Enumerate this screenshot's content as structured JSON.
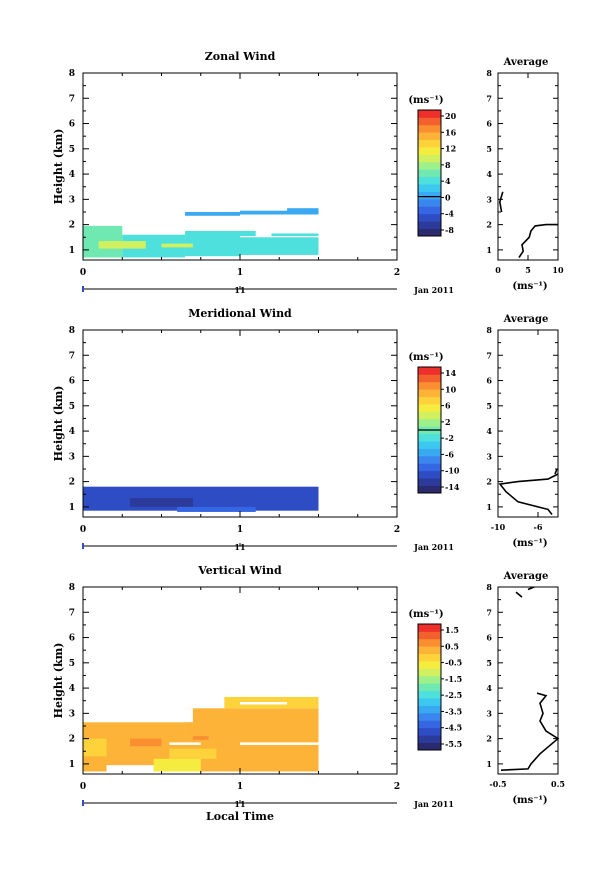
{
  "common": {
    "ylabel": "Height (km)",
    "xlabel": "Local Time",
    "xticks": [
      "0",
      "1",
      "2"
    ],
    "date_tick": "11",
    "date_label": "Jan 2011",
    "units_label": "(ms⁻¹)",
    "avg_title": "Average",
    "yticks": [
      "1",
      "2",
      "3",
      "4",
      "5",
      "6",
      "7",
      "8"
    ]
  },
  "palette": [
    "#2b2a6e",
    "#2c3a9a",
    "#2e4cc4",
    "#3567e4",
    "#3b86ee",
    "#39a9f1",
    "#3cc8ef",
    "#4ee0dc",
    "#6fe8b2",
    "#9ef08a",
    "#d0f060",
    "#f4ec3f",
    "#fdd23b",
    "#fcb337",
    "#fa8f32",
    "#f2602e",
    "#ee2f2b"
  ],
  "chart_data": [
    {
      "type": "heatmap",
      "title": "Zonal Wind",
      "xlim": [
        0,
        2
      ],
      "ylim": [
        0.6,
        8.0
      ],
      "colorbar": {
        "labels": [
          "20",
          "16",
          "12",
          "8",
          "4",
          "0",
          "-4",
          "-8"
        ],
        "range": [
          -10,
          22
        ],
        "zero_line": 0
      },
      "regions": [
        {
          "x0": 0.0,
          "x1": 0.25,
          "y0": 0.7,
          "y1": 1.95,
          "v": 6
        },
        {
          "x0": 0.25,
          "x1": 0.65,
          "y0": 0.7,
          "y1": 1.6,
          "v": 5
        },
        {
          "x0": 0.65,
          "x1": 1.0,
          "y0": 0.75,
          "y1": 1.55,
          "v": 4
        },
        {
          "x0": 1.0,
          "x1": 1.5,
          "y0": 0.8,
          "y1": 1.5,
          "v": 5
        },
        {
          "x0": 0.1,
          "x1": 0.4,
          "y0": 1.05,
          "y1": 1.35,
          "v": 9
        },
        {
          "x0": 0.5,
          "x1": 0.7,
          "y0": 1.1,
          "y1": 1.25,
          "v": 10
        },
        {
          "x0": 0.65,
          "x1": 1.1,
          "y0": 1.55,
          "y1": 1.75,
          "v": 5
        },
        {
          "x0": 1.2,
          "x1": 1.5,
          "y0": 1.55,
          "y1": 1.65,
          "v": 5
        },
        {
          "x0": 0.65,
          "x1": 1.0,
          "y0": 2.35,
          "y1": 2.5,
          "v": 0
        },
        {
          "x0": 1.0,
          "x1": 1.5,
          "y0": 2.4,
          "y1": 2.55,
          "v": 1
        },
        {
          "x0": 1.3,
          "x1": 1.5,
          "y0": 2.5,
          "y1": 2.65,
          "v": 0
        }
      ],
      "average": {
        "xlim": [
          0,
          10
        ],
        "xticks": [
          "0",
          "5",
          "10"
        ],
        "profile": [
          [
            3.5,
            0.7
          ],
          [
            4.2,
            0.95
          ],
          [
            4.0,
            1.2
          ],
          [
            5.2,
            1.5
          ],
          [
            5.5,
            1.75
          ],
          [
            6.2,
            1.95
          ],
          [
            8.0,
            2.0
          ],
          [
            10,
            2.0
          ]
        ],
        "profile2": [
          [
            0.6,
            2.5
          ],
          [
            0.3,
            2.9
          ],
          [
            0.8,
            3.3
          ]
        ]
      }
    },
    {
      "type": "heatmap",
      "title": "Meridional Wind",
      "xlim": [
        0,
        2
      ],
      "ylim": [
        0.6,
        8.0
      ],
      "colorbar": {
        "labels": [
          "14",
          "10",
          "6",
          "2",
          "-2",
          "-6",
          "-10",
          "-14"
        ],
        "range": [
          -16,
          16
        ],
        "zero_line": 0
      },
      "regions": [
        {
          "x0": 0.0,
          "x1": 1.5,
          "y0": 0.85,
          "y1": 1.8,
          "v": -12
        },
        {
          "x0": 0.3,
          "x1": 0.7,
          "y0": 1.0,
          "y1": 1.35,
          "v": -14
        },
        {
          "x0": 0.9,
          "x1": 1.5,
          "y0": 1.1,
          "y1": 1.45,
          "v": -11
        },
        {
          "x0": 0.6,
          "x1": 1.1,
          "y0": 0.8,
          "y1": 1.0,
          "v": -9
        }
      ],
      "average": {
        "xlim": [
          -10,
          -4
        ],
        "xticks": [
          "-10",
          "-6"
        ],
        "profile": [
          [
            -4.6,
            0.7
          ],
          [
            -5.0,
            0.9
          ],
          [
            -8.0,
            1.2
          ],
          [
            -9.2,
            1.6
          ],
          [
            -9.8,
            1.9
          ],
          [
            -8.0,
            2.0
          ],
          [
            -5.0,
            2.1
          ],
          [
            -4.0,
            2.3
          ]
        ],
        "profile2": [
          [
            -4.3,
            2.3
          ],
          [
            -4.1,
            2.5
          ]
        ]
      }
    },
    {
      "type": "heatmap",
      "title": "Vertical Wind",
      "xlim": [
        0,
        2
      ],
      "ylim": [
        0.6,
        8.0
      ],
      "colorbar": {
        "labels": [
          "1.5",
          "0.5",
          "-0.5",
          "-1.5",
          "-2.5",
          "-3.5",
          "-4.5",
          "-5.5"
        ],
        "range": [
          -6.2,
          2.2
        ],
        "zero_line": null
      },
      "regions": [
        {
          "x0": 0.0,
          "x1": 0.65,
          "y0": 0.7,
          "y1": 2.65,
          "v": 0.3
        },
        {
          "x0": 0.65,
          "x1": 1.5,
          "y0": 0.7,
          "y1": 3.2,
          "v": 0.3
        },
        {
          "x0": 0.9,
          "x1": 1.5,
          "y0": 3.2,
          "y1": 3.65,
          "v": 0.0
        },
        {
          "x0": 0.0,
          "x1": 0.15,
          "y0": 1.3,
          "y1": 2.0,
          "v": 0.0
        },
        {
          "x0": 0.3,
          "x1": 0.5,
          "y0": 1.7,
          "y1": 2.0,
          "v": 0.9
        },
        {
          "x0": 0.45,
          "x1": 0.75,
          "y0": 0.7,
          "y1": 1.2,
          "v": -0.7
        },
        {
          "x0": 0.55,
          "x1": 0.85,
          "y0": 1.2,
          "y1": 1.6,
          "v": -0.2
        },
        {
          "x0": 0.7,
          "x1": 0.8,
          "y0": 1.95,
          "y1": 2.1,
          "v": 1.1
        }
      ],
      "gaps": [
        {
          "x0": 0.0,
          "x1": 0.7,
          "y0": 2.65,
          "y1": 3.2
        },
        {
          "x0": 0.55,
          "x1": 0.75,
          "y0": 1.75,
          "y1": 1.85
        },
        {
          "x0": 1.0,
          "x1": 1.5,
          "y0": 1.75,
          "y1": 1.85
        },
        {
          "x0": 1.0,
          "x1": 1.3,
          "y0": 3.35,
          "y1": 3.45
        },
        {
          "x0": 0.15,
          "x1": 0.45,
          "y0": 0.7,
          "y1": 0.95
        }
      ],
      "average": {
        "xlim": [
          -0.5,
          0.5
        ],
        "xticks": [
          "-0.5",
          "0.5"
        ],
        "profile": [
          [
            -0.45,
            0.75
          ],
          [
            0.0,
            0.8
          ],
          [
            0.05,
            1.0
          ],
          [
            0.2,
            1.4
          ],
          [
            0.35,
            1.7
          ],
          [
            0.5,
            2.0
          ],
          [
            0.3,
            2.3
          ],
          [
            0.2,
            2.7
          ],
          [
            0.25,
            3.0
          ],
          [
            0.2,
            3.4
          ],
          [
            0.3,
            3.7
          ],
          [
            0.15,
            3.8
          ]
        ],
        "profile2": [
          [
            -0.1,
            7.6
          ],
          [
            -0.2,
            7.8
          ]
        ],
        "profile3": [
          [
            0.0,
            7.9
          ],
          [
            0.1,
            8.0
          ]
        ]
      }
    }
  ]
}
